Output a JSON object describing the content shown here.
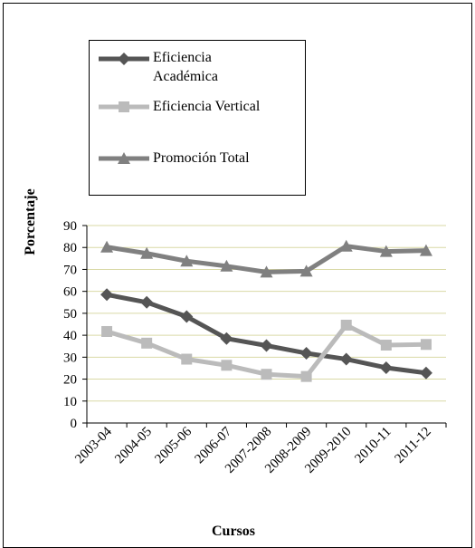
{
  "chart_data": {
    "type": "line",
    "xlabel": "Cursos",
    "ylabel": "Porcentaje",
    "ylim": [
      0,
      90
    ],
    "yticks": [
      0,
      10,
      20,
      30,
      40,
      50,
      60,
      70,
      80,
      90
    ],
    "grid": true,
    "legend_position": "top",
    "categories": [
      "2003-04",
      "2004-05",
      "2005-06",
      "2006-07",
      "2007-2008",
      "2008-2009",
      "2009-2010",
      "2010-11",
      "2011-12"
    ],
    "series": [
      {
        "name": "Eficiencia Académica",
        "name_lines": [
          "Eficiencia",
          "Académica"
        ],
        "marker": "diamond",
        "color": "#555555",
        "values": [
          58.5,
          55,
          48.5,
          38.5,
          35.3,
          31.8,
          29.1,
          25.2,
          22.8
        ]
      },
      {
        "name": "Eficiencia Vertical",
        "name_lines": [
          "Eficiencia Vertical"
        ],
        "marker": "square",
        "color": "#bbbbbb",
        "values": [
          41.7,
          36.4,
          29.1,
          26.3,
          22.2,
          21.2,
          44.6,
          35.5,
          35.8
        ]
      },
      {
        "name": "Promoción Total",
        "name_lines": [
          "Promoción Total"
        ],
        "marker": "triangle",
        "color": "#808080",
        "values": [
          80.2,
          77.3,
          73.8,
          71.5,
          68.8,
          69.2,
          80.6,
          78.2,
          78.6
        ]
      }
    ]
  }
}
